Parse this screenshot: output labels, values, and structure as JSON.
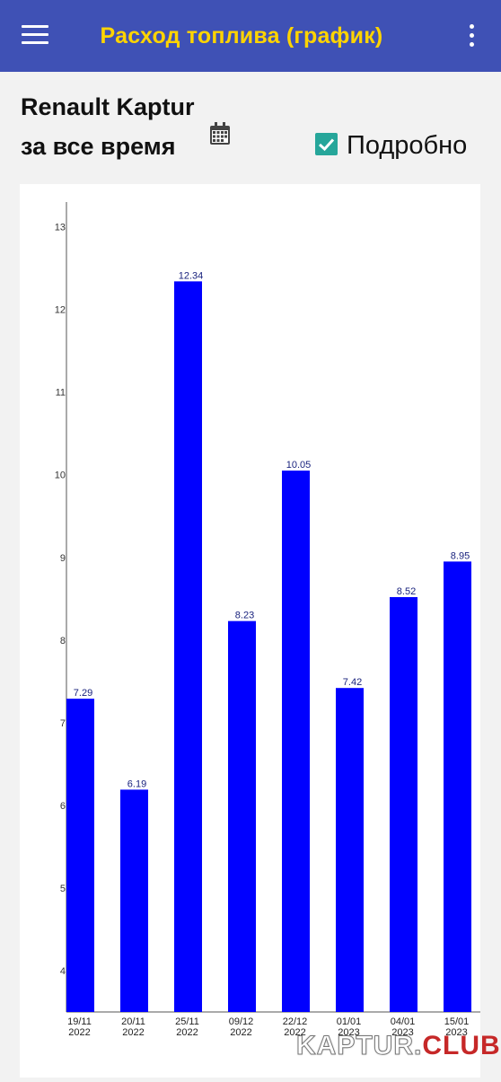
{
  "appbar": {
    "title": "Расход топлива (график)",
    "menu_icon": "hamburger-menu-icon",
    "overflow_icon": "more-vert-icon",
    "background": "#3f51b5",
    "title_color": "#ffd400"
  },
  "header": {
    "car_name": "Renault Kaptur",
    "period": "за все время",
    "calendar_icon": "calendar-icon",
    "detail_checkbox": {
      "label": "Подробно",
      "checked": true,
      "color": "#26a69a"
    }
  },
  "chart_data": {
    "type": "bar",
    "categories": [
      "19/11\n2022",
      "20/11\n2022",
      "25/11\n2022",
      "09/12\n2022",
      "22/12\n2022",
      "01/01\n2023",
      "04/01\n2023",
      "15/01\n2023"
    ],
    "values": [
      7.29,
      6.19,
      12.34,
      8.23,
      10.05,
      7.42,
      8.52,
      8.95
    ],
    "value_labels": [
      "7.29",
      "6.19",
      "12.34",
      "8.23",
      "10.05",
      "7.42",
      "8.52",
      "8.95"
    ],
    "ylim": [
      3.5,
      13.3
    ],
    "yticks": [
      4,
      5,
      6,
      7,
      8,
      9,
      10,
      11,
      12,
      13
    ],
    "bar_color": "#0000ff",
    "label_color": "#1a237e",
    "grid": false
  },
  "watermark": {
    "part1": "KAPTUR.",
    "part2": "CLUB"
  }
}
